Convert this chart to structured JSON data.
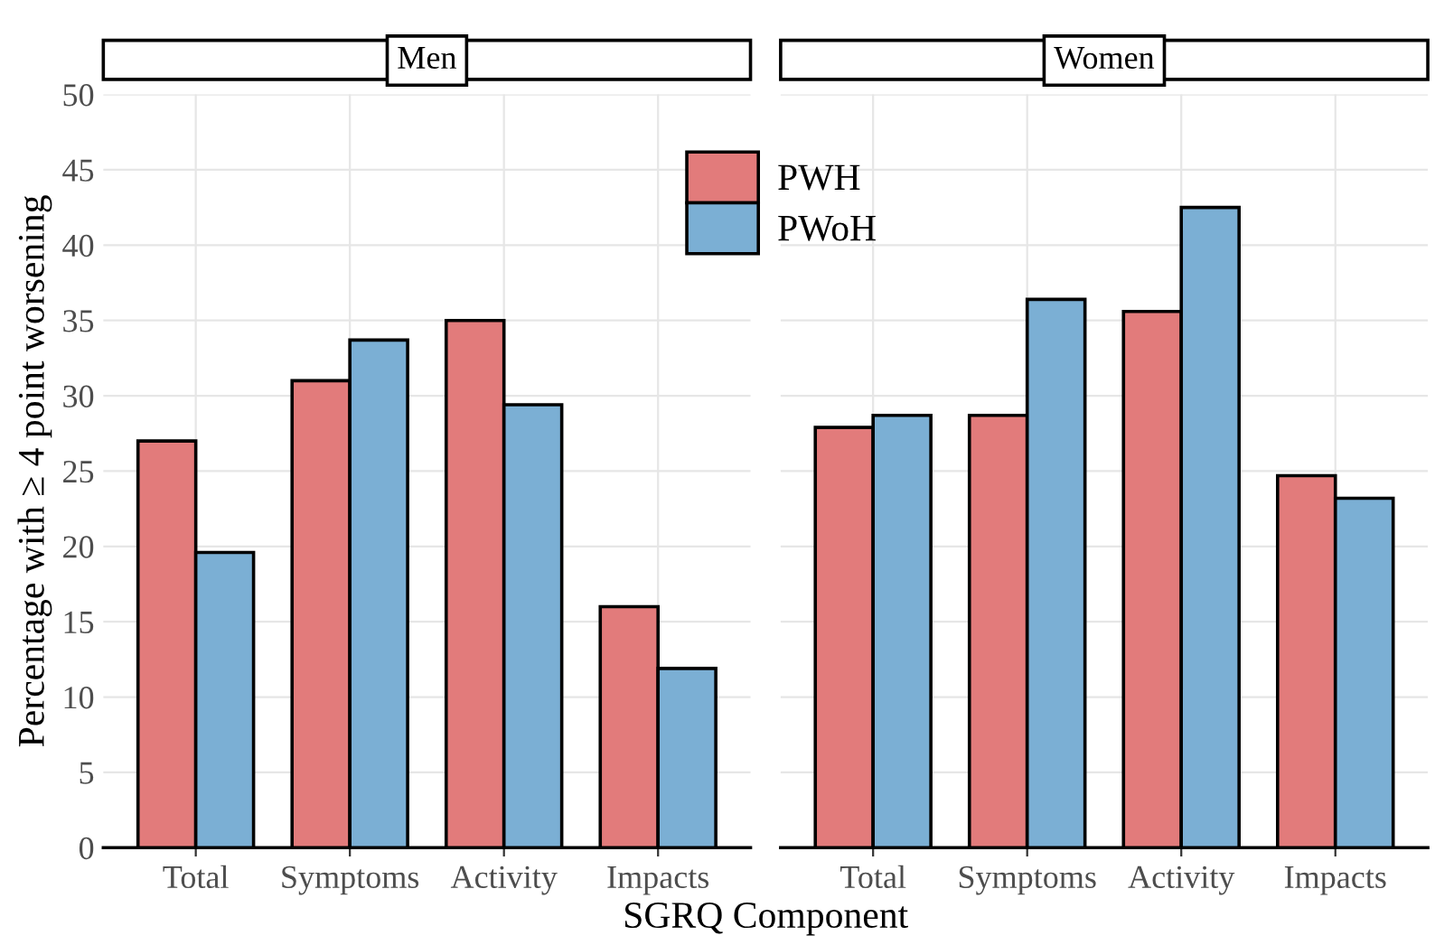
{
  "chart_data": [
    {
      "type": "bar",
      "title": "Men",
      "ylabel": "Percentage with ≥ 4 point worsening",
      "xlabel": "SGRQ Component",
      "categories": [
        "Total",
        "Symptoms",
        "Activity",
        "Impacts"
      ],
      "series": [
        {
          "name": "PWH",
          "color": "#e27b7b",
          "values": [
            27.0,
            31.0,
            35.0,
            16.0
          ]
        },
        {
          "name": "PWoH",
          "color": "#7bafd4",
          "values": [
            19.6,
            33.7,
            29.4,
            11.9
          ]
        }
      ],
      "ylim": [
        0,
        50
      ],
      "yticks": [
        0,
        5,
        10,
        15,
        20,
        25,
        30,
        35,
        40,
        45,
        50
      ],
      "grid": true,
      "legend": "top right"
    },
    {
      "type": "bar",
      "title": "Women",
      "categories": [
        "Total",
        "Symptoms",
        "Activity",
        "Impacts"
      ],
      "series": [
        {
          "color": "#e27b7b",
          "values": [
            27.9,
            28.7,
            35.6,
            24.7
          ]
        },
        {
          "color": "#7bafd4",
          "values": [
            28.7,
            36.4,
            42.5,
            23.2
          ]
        }
      ],
      "ylim": [
        0,
        50
      ],
      "yticks": [
        0,
        5,
        10,
        15,
        20,
        25,
        30,
        35,
        40,
        45,
        50
      ],
      "grid": true,
      "tick_labels": "x"
    }
  ]
}
